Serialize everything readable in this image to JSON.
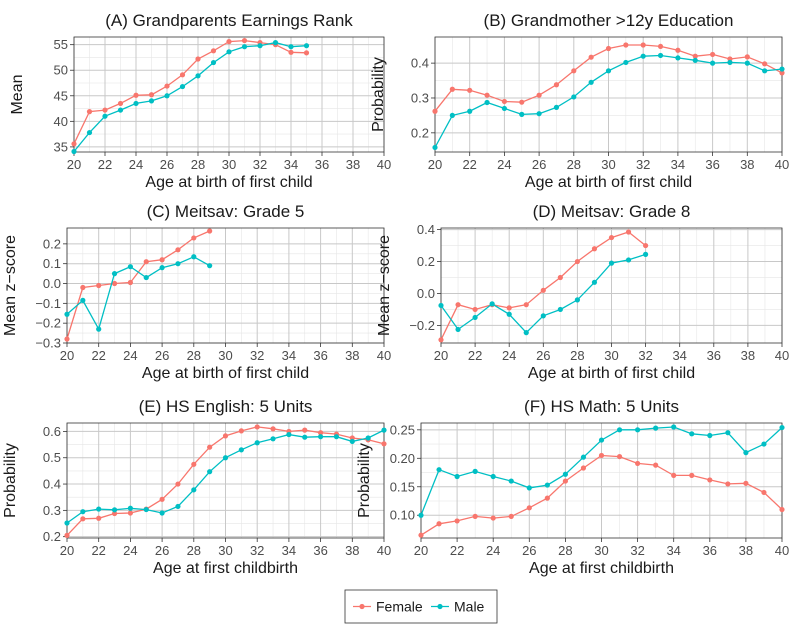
{
  "colors": {
    "female": "#F8766D",
    "male": "#00BFC4"
  },
  "legend": {
    "items": [
      {
        "key": "female",
        "label": "Female"
      },
      {
        "key": "male",
        "label": "Male"
      }
    ]
  },
  "chart_data": [
    {
      "id": "A",
      "type": "line",
      "title": "(A) Grandparents Earnings Rank",
      "xlabel": "Age at birth of first child",
      "ylabel": "Mean",
      "xlim": [
        20,
        40
      ],
      "xticks": [
        20,
        22,
        24,
        26,
        28,
        30,
        32,
        34,
        36,
        38,
        40
      ],
      "ylim": [
        34,
        56.5
      ],
      "yticks": [
        35,
        40,
        45,
        50,
        55
      ],
      "ytick_labels": [
        "35",
        "40",
        "45",
        "50",
        "55"
      ],
      "series": [
        {
          "name": "Female",
          "key": "female",
          "x": [
            20,
            21,
            22,
            23,
            24,
            25,
            26,
            27,
            28,
            29,
            30,
            31,
            32,
            33,
            34,
            35
          ],
          "y": [
            35.6,
            41.9,
            42.2,
            43.5,
            45.1,
            45.2,
            46.9,
            49.1,
            52.2,
            53.8,
            55.6,
            55.8,
            55.4,
            55.0,
            53.5,
            53.4
          ]
        },
        {
          "name": "Male",
          "key": "male",
          "x": [
            20,
            21,
            22,
            23,
            24,
            25,
            26,
            27,
            28,
            29,
            30,
            31,
            32,
            33,
            34,
            35
          ],
          "y": [
            34.1,
            37.8,
            41.0,
            42.2,
            43.5,
            44.0,
            45.0,
            46.8,
            48.9,
            51.5,
            53.6,
            54.6,
            54.8,
            55.4,
            54.6,
            54.8
          ]
        }
      ]
    },
    {
      "id": "B",
      "type": "line",
      "title": "(B) Grandmother >12y Education",
      "xlabel": "Age at birth of first child",
      "ylabel": "Probability",
      "xlim": [
        20,
        40
      ],
      "xticks": [
        20,
        22,
        24,
        26,
        28,
        30,
        32,
        34,
        36,
        38,
        40
      ],
      "ylim": [
        0.145,
        0.475
      ],
      "yticks": [
        0.2,
        0.3,
        0.4
      ],
      "ytick_labels": [
        "0.2",
        "0.3",
        "0.4"
      ],
      "series": [
        {
          "name": "Female",
          "key": "female",
          "x": [
            20,
            21,
            22,
            23,
            24,
            25,
            26,
            27,
            28,
            29,
            30,
            31,
            32,
            33,
            34,
            35,
            36,
            37,
            38,
            39,
            40
          ],
          "y": [
            0.262,
            0.325,
            0.322,
            0.308,
            0.29,
            0.288,
            0.308,
            0.338,
            0.378,
            0.417,
            0.442,
            0.452,
            0.452,
            0.448,
            0.437,
            0.42,
            0.425,
            0.412,
            0.418,
            0.398,
            0.372
          ]
        },
        {
          "name": "Male",
          "key": "male",
          "x": [
            20,
            21,
            22,
            23,
            24,
            25,
            26,
            27,
            28,
            29,
            30,
            31,
            32,
            33,
            34,
            35,
            36,
            37,
            38,
            39,
            40
          ],
          "y": [
            0.158,
            0.25,
            0.262,
            0.287,
            0.27,
            0.253,
            0.255,
            0.273,
            0.303,
            0.345,
            0.378,
            0.402,
            0.42,
            0.422,
            0.415,
            0.408,
            0.4,
            0.402,
            0.4,
            0.378,
            0.383
          ]
        }
      ]
    },
    {
      "id": "C",
      "type": "line",
      "title": "(C) Meitsav: Grade 5",
      "xlabel": "Age at birth of first child",
      "ylabel": "Mean z−score",
      "xlim": [
        20,
        40
      ],
      "xticks": [
        20,
        22,
        24,
        26,
        28,
        30,
        32,
        34,
        36,
        38,
        40
      ],
      "ylim": [
        -0.3,
        0.28
      ],
      "yticks": [
        -0.3,
        -0.2,
        -0.1,
        0.0,
        0.1,
        0.2
      ],
      "ytick_labels": [
        "−0.3",
        "−0.2",
        "−0.1",
        "0.0",
        "0.1",
        "0.2"
      ],
      "series": [
        {
          "name": "Female",
          "key": "female",
          "x": [
            20,
            21,
            22,
            23,
            24,
            25,
            26,
            27,
            28,
            29
          ],
          "y": [
            -0.28,
            -0.02,
            -0.01,
            0.0,
            0.005,
            0.11,
            0.12,
            0.17,
            0.23,
            0.265
          ]
        },
        {
          "name": "Male",
          "key": "male",
          "x": [
            20,
            21,
            22,
            23,
            24,
            25,
            26,
            27,
            28,
            29
          ],
          "y": [
            -0.155,
            -0.085,
            -0.23,
            0.05,
            0.085,
            0.03,
            0.08,
            0.1,
            0.135,
            0.09
          ]
        }
      ]
    },
    {
      "id": "D",
      "type": "line",
      "title": "(D) Meitsav: Grade 8",
      "xlabel": "Age at birth of first child",
      "ylabel": "Mean z−score",
      "xlim": [
        20,
        40
      ],
      "xticks": [
        20,
        22,
        24,
        26,
        28,
        30,
        32,
        34,
        36,
        38,
        40
      ],
      "ylim": [
        -0.31,
        0.41
      ],
      "yticks": [
        -0.2,
        0.0,
        0.2,
        0.4
      ],
      "ytick_labels": [
        "−0.2",
        "0.0",
        "0.2",
        "0.4"
      ],
      "series": [
        {
          "name": "Female",
          "key": "female",
          "x": [
            20,
            21,
            22,
            23,
            24,
            25,
            26,
            27,
            28,
            29,
            30,
            31,
            32
          ],
          "y": [
            -0.29,
            -0.07,
            -0.1,
            -0.07,
            -0.09,
            -0.07,
            0.02,
            0.1,
            0.2,
            0.28,
            0.35,
            0.385,
            0.3
          ]
        },
        {
          "name": "Male",
          "key": "male",
          "x": [
            20,
            21,
            22,
            23,
            24,
            25,
            26,
            27,
            28,
            29,
            30,
            31,
            32
          ],
          "y": [
            -0.075,
            -0.225,
            -0.15,
            -0.065,
            -0.13,
            -0.245,
            -0.14,
            -0.1,
            -0.04,
            0.07,
            0.19,
            0.21,
            0.245
          ]
        }
      ]
    },
    {
      "id": "E",
      "type": "line",
      "title": "(E) HS English: 5 Units",
      "xlabel": "Age at first childbirth",
      "ylabel": "Probability",
      "xlim": [
        20,
        40
      ],
      "xticks": [
        20,
        22,
        24,
        26,
        28,
        30,
        32,
        34,
        36,
        38,
        40
      ],
      "ylim": [
        0.195,
        0.632
      ],
      "yticks": [
        0.2,
        0.3,
        0.4,
        0.5,
        0.6
      ],
      "ytick_labels": [
        "0.2",
        "0.3",
        "0.4",
        "0.5",
        "0.6"
      ],
      "series": [
        {
          "name": "Female",
          "key": "female",
          "x": [
            20,
            21,
            22,
            23,
            24,
            25,
            26,
            27,
            28,
            29,
            30,
            31,
            32,
            33,
            34,
            35,
            36,
            37,
            38,
            39,
            40
          ],
          "y": [
            0.205,
            0.268,
            0.27,
            0.288,
            0.29,
            0.305,
            0.342,
            0.4,
            0.475,
            0.54,
            0.583,
            0.602,
            0.617,
            0.61,
            0.6,
            0.605,
            0.595,
            0.59,
            0.575,
            0.568,
            0.553
          ]
        },
        {
          "name": "Male",
          "key": "male",
          "x": [
            20,
            21,
            22,
            23,
            24,
            25,
            26,
            27,
            28,
            29,
            30,
            31,
            32,
            33,
            34,
            35,
            36,
            37,
            38,
            39,
            40
          ],
          "y": [
            0.252,
            0.295,
            0.305,
            0.302,
            0.308,
            0.303,
            0.29,
            0.315,
            0.378,
            0.447,
            0.5,
            0.53,
            0.557,
            0.572,
            0.588,
            0.578,
            0.58,
            0.58,
            0.562,
            0.575,
            0.605
          ]
        }
      ]
    },
    {
      "id": "F",
      "type": "line",
      "title": "(F) HS Math: 5 Units",
      "xlabel": "Age at first childbirth",
      "ylabel": "Probability",
      "xlim": [
        20,
        40
      ],
      "xticks": [
        20,
        22,
        24,
        26,
        28,
        30,
        32,
        34,
        36,
        38,
        40
      ],
      "ylim": [
        0.06,
        0.262
      ],
      "yticks": [
        0.1,
        0.15,
        0.2,
        0.25
      ],
      "ytick_labels": [
        "0.10",
        "0.15",
        "0.20",
        "0.25"
      ],
      "series": [
        {
          "name": "Female",
          "key": "female",
          "x": [
            20,
            21,
            22,
            23,
            24,
            25,
            26,
            27,
            28,
            29,
            30,
            31,
            32,
            33,
            34,
            35,
            36,
            37,
            38,
            39,
            40
          ],
          "y": [
            0.065,
            0.085,
            0.09,
            0.098,
            0.095,
            0.098,
            0.113,
            0.13,
            0.16,
            0.183,
            0.205,
            0.203,
            0.191,
            0.188,
            0.17,
            0.17,
            0.162,
            0.155,
            0.156,
            0.14,
            0.11
          ]
        },
        {
          "name": "Male",
          "key": "male",
          "x": [
            20,
            21,
            22,
            23,
            24,
            25,
            26,
            27,
            28,
            29,
            30,
            31,
            32,
            33,
            34,
            35,
            36,
            37,
            38,
            39,
            40
          ],
          "y": [
            0.1,
            0.18,
            0.168,
            0.177,
            0.168,
            0.16,
            0.148,
            0.153,
            0.172,
            0.202,
            0.232,
            0.25,
            0.25,
            0.253,
            0.255,
            0.243,
            0.24,
            0.245,
            0.21,
            0.225,
            0.254
          ]
        }
      ]
    }
  ]
}
